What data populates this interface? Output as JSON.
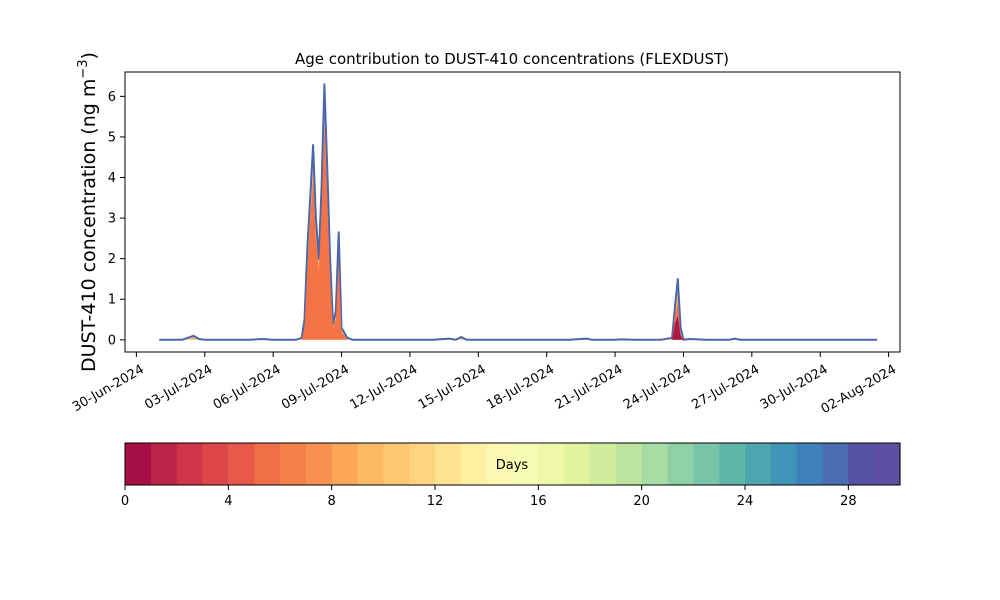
{
  "chart_data": [
    {
      "type": "area",
      "title": "Age contribution to DUST-410 concentrations (FLEXDUST)",
      "ylabel": "DUST-410 concentration (ng m⁻³)",
      "ylabel_main": "DUST-410 concentration (ng m",
      "ylabel_sup": "−3",
      "ylabel_close": ")",
      "xlabel": "",
      "x_type": "date",
      "xlim": [
        "2024-06-29T12:00",
        "2024-08-02T12:00"
      ],
      "ylim": [
        -0.3,
        6.6
      ],
      "yticks": [
        0,
        1,
        2,
        3,
        4,
        5,
        6
      ],
      "xticks": [
        "2024-06-30",
        "2024-07-03",
        "2024-07-06",
        "2024-07-09",
        "2024-07-12",
        "2024-07-15",
        "2024-07-18",
        "2024-07-21",
        "2024-07-24",
        "2024-07-27",
        "2024-07-30",
        "2024-08-02"
      ],
      "xtick_labels": [
        "30-Jun-2024",
        "03-Jul-2024",
        "06-Jul-2024",
        "09-Jul-2024",
        "12-Jul-2024",
        "15-Jul-2024",
        "18-Jul-2024",
        "21-Jul-2024",
        "24-Jul-2024",
        "27-Jul-2024",
        "30-Jul-2024",
        "02-Aug-2024"
      ],
      "grid": false,
      "series": [
        {
          "role": "total (age 0–30 days)",
          "color": "#4a67ad",
          "x": [
            "2024-07-01T00:00",
            "2024-07-02T00:00",
            "2024-07-02T12:00",
            "2024-07-02T18:00",
            "2024-07-03T00:00",
            "2024-07-04T00:00",
            "2024-07-05T00:00",
            "2024-07-05T12:00",
            "2024-07-06T00:00",
            "2024-07-07T00:00",
            "2024-07-07T06:00",
            "2024-07-07T09:00",
            "2024-07-07T12:00",
            "2024-07-07T15:00",
            "2024-07-07T18:00",
            "2024-07-07T21:00",
            "2024-07-08T00:00",
            "2024-07-08T03:00",
            "2024-07-08T06:00",
            "2024-07-08T09:00",
            "2024-07-08T12:00",
            "2024-07-08T15:00",
            "2024-07-08T18:00",
            "2024-07-08T21:00",
            "2024-07-09T00:00",
            "2024-07-09T06:00",
            "2024-07-09T12:00",
            "2024-07-10T00:00",
            "2024-07-11T00:00",
            "2024-07-12T00:00",
            "2024-07-13T00:00",
            "2024-07-13T18:00",
            "2024-07-14T00:00",
            "2024-07-14T06:00",
            "2024-07-14T12:00",
            "2024-07-15T00:00",
            "2024-07-16T00:00",
            "2024-07-17T00:00",
            "2024-07-18T00:00",
            "2024-07-19T00:00",
            "2024-07-19T18:00",
            "2024-07-20T00:00",
            "2024-07-20T06:00",
            "2024-07-21T00:00",
            "2024-07-21T06:00",
            "2024-07-22T00:00",
            "2024-07-23T00:00",
            "2024-07-23T12:00",
            "2024-07-23T15:00",
            "2024-07-23T18:00",
            "2024-07-23T21:00",
            "2024-07-24T00:00",
            "2024-07-24T06:00",
            "2024-07-25T00:00",
            "2024-07-26T00:00",
            "2024-07-26T06:00",
            "2024-07-26T12:00",
            "2024-07-27T00:00",
            "2024-07-28T00:00",
            "2024-07-29T00:00",
            "2024-07-30T00:00",
            "2024-07-31T00:00",
            "2024-08-01T00:00",
            "2024-08-01T12:00"
          ],
          "values": [
            0.0,
            0.0,
            0.1,
            0.02,
            0.0,
            0.0,
            0.0,
            0.02,
            0.0,
            0.0,
            0.05,
            0.5,
            2.3,
            3.5,
            4.8,
            3.0,
            2.0,
            3.8,
            6.3,
            4.2,
            2.0,
            0.4,
            0.7,
            2.65,
            0.3,
            0.05,
            0.0,
            0.0,
            0.0,
            0.0,
            0.0,
            0.03,
            0.0,
            0.07,
            0.0,
            0.0,
            0.0,
            0.0,
            0.0,
            0.0,
            0.03,
            0.0,
            0.0,
            0.0,
            0.01,
            0.0,
            0.0,
            0.05,
            0.8,
            1.5,
            0.3,
            0.0,
            0.02,
            0.0,
            0.0,
            0.03,
            0.0,
            0.0,
            0.0,
            0.0,
            0.0,
            0.0,
            0.0,
            0.0
          ]
        },
        {
          "role": "young fraction (age 0–8 days)",
          "color": "#f46d43",
          "x": [
            "2024-07-07T06:00",
            "2024-07-07T09:00",
            "2024-07-07T12:00",
            "2024-07-07T15:00",
            "2024-07-07T18:00",
            "2024-07-07T21:00",
            "2024-07-08T00:00",
            "2024-07-08T03:00",
            "2024-07-08T06:00",
            "2024-07-08T09:00",
            "2024-07-08T12:00",
            "2024-07-08T15:00",
            "2024-07-08T18:00",
            "2024-07-08T21:00",
            "2024-07-09T00:00",
            "2024-07-09T06:00",
            "2024-07-23T12:00",
            "2024-07-23T15:00",
            "2024-07-23T18:00",
            "2024-07-23T21:00",
            "2024-07-24T00:00"
          ],
          "values": [
            0.0,
            0.3,
            1.8,
            2.9,
            4.0,
            2.5,
            1.7,
            3.2,
            5.3,
            3.5,
            1.6,
            0.3,
            0.5,
            2.0,
            0.2,
            0.0,
            0.0,
            0.6,
            0.9,
            0.15,
            0.0
          ]
        },
        {
          "role": "freshest fraction (age 0–1 days)",
          "color": "#a50f45",
          "x": [
            "2024-07-23T12:00",
            "2024-07-23T15:00",
            "2024-07-23T18:00",
            "2024-07-23T21:00",
            "2024-07-24T00:00"
          ],
          "values": [
            0.0,
            0.4,
            0.6,
            0.1,
            0.0
          ]
        }
      ]
    },
    {
      "type": "heatmap",
      "role": "colorbar",
      "label": "Days",
      "range": [
        0,
        30
      ],
      "ticks": [
        0,
        4,
        8,
        12,
        16,
        20,
        24,
        28
      ],
      "colors": [
        "#a50f45",
        "#bb2347",
        "#ce3649",
        "#dc484a",
        "#e85a47",
        "#f06e45",
        "#f57f48",
        "#f9924f",
        "#fca657",
        "#fdb863",
        "#fec770",
        "#fed481",
        "#fee291",
        "#feefa1",
        "#fdf8b1",
        "#f6fbb2",
        "#eef8a8",
        "#e2f39d",
        "#d1ec9e",
        "#bde5a0",
        "#a7dca4",
        "#8fd1a5",
        "#77c5a6",
        "#60b7a9",
        "#4ea7b0",
        "#3f94b7",
        "#3e80b9",
        "#4a6cb0",
        "#5653a4",
        "#5e4fa2"
      ]
    }
  ]
}
